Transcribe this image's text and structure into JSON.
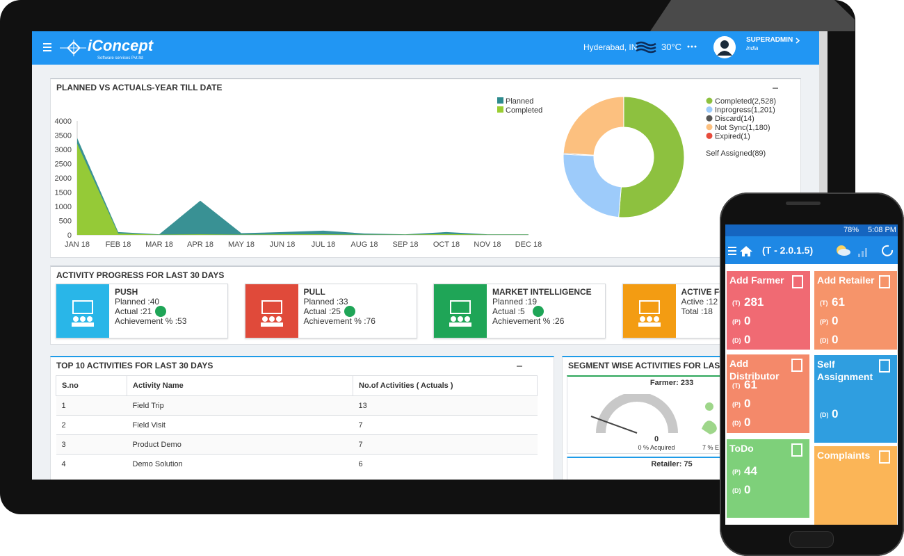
{
  "header": {
    "logo": "iConcept",
    "logo_sub": "Software services Pvt.ltd",
    "location": "Hyderabad, IN",
    "temperature": "30°C",
    "user": "SUPERADMIN",
    "country": "India"
  },
  "chart_data": [
    {
      "type": "area",
      "title": "PLANNED VS ACTUALS-YEAR TILL DATE",
      "categories": [
        "JAN 18",
        "FEB 18",
        "MAR 18",
        "APR 18",
        "MAY 18",
        "JUN 18",
        "JUL 18",
        "AUG 18",
        "SEP 18",
        "OCT 18",
        "NOV 18",
        "DEC 18"
      ],
      "series": [
        {
          "name": "Planned",
          "color": "#2e8b8e",
          "values": [
            3400,
            100,
            20,
            1200,
            60,
            100,
            150,
            50,
            20,
            100,
            20,
            20
          ]
        },
        {
          "name": "Completed",
          "color": "#9acd32",
          "values": [
            3200,
            50,
            10,
            20,
            10,
            20,
            20,
            10,
            10,
            30,
            10,
            10
          ]
        }
      ],
      "ylim": [
        0,
        4000
      ],
      "yticks": [
        0,
        500,
        1000,
        1500,
        2000,
        2500,
        3000,
        3500,
        4000
      ],
      "grid": false
    },
    {
      "type": "pie",
      "donut": true,
      "categories": [
        "Completed(2,528)",
        "Inprogress(1,201)",
        "Discard(14)",
        "Not Sync(1,180)",
        "Expired(1)"
      ],
      "values": [
        2528,
        1201,
        14,
        1180,
        1
      ],
      "colors": [
        "#8dc13f",
        "#9dcbfa",
        "#555555",
        "#fcc07f",
        "#e74c3c"
      ],
      "annotation": "Self Assigned(89)"
    }
  ],
  "activity_progress": {
    "title": "ACTIVITY PROGRESS FOR LAST 30 DAYS",
    "cards": [
      {
        "title": "PUSH",
        "lines": [
          "Planned :40",
          "Actual :21",
          "Achievement % :53"
        ]
      },
      {
        "title": "PULL",
        "lines": [
          "Planned :33",
          "Actual :25",
          "Achievement % :76"
        ]
      },
      {
        "title": "MARKET INTELLIGENCE",
        "lines": [
          "Planned :19",
          "Actual :5",
          "Achievement % :26"
        ]
      },
      {
        "title": "ACTIVE FO",
        "lines": [
          "Active :12",
          "Total :18"
        ]
      }
    ]
  },
  "top_activities": {
    "title": "TOP 10 ACTIVITIES FOR LAST 30 DAYS",
    "columns": [
      "S.no",
      "Activity Name",
      "No.of Activities ( Actuals )"
    ],
    "rows": [
      [
        "1",
        "Field Trip",
        "13"
      ],
      [
        "2",
        "Field Visit",
        "7"
      ],
      [
        "3",
        "Product Demo",
        "7"
      ],
      [
        "4",
        "Demo Solution",
        "6"
      ]
    ]
  },
  "segment": {
    "title": "SEGMENT WISE ACTIVITIES FOR LAST",
    "farmer": "Farmer: 233",
    "farmer_value": "0",
    "acquired": "0 % Acquired",
    "other": "7 % E",
    "retailer": "Retailer: 75"
  },
  "phone": {
    "battery": "78%",
    "time": "5:08 PM",
    "app_title": "(T - 2.0.1.5)",
    "tiles": [
      {
        "title": "Add Farmer",
        "rows": [
          {
            "label": "(T)",
            "value": "281"
          },
          {
            "label": "(P)",
            "value": "0"
          },
          {
            "label": "(D)",
            "value": "0"
          }
        ]
      },
      {
        "title": "Add Retailer",
        "rows": [
          {
            "label": "(T)",
            "value": "61"
          },
          {
            "label": "(P)",
            "value": "0"
          },
          {
            "label": "(D)",
            "value": "0"
          }
        ]
      },
      {
        "title": "Add Distributor",
        "rows": [
          {
            "label": "(T)",
            "value": "61"
          },
          {
            "label": "(P)",
            "value": "0"
          },
          {
            "label": "(D)",
            "value": "0"
          }
        ]
      },
      {
        "title": "Self Assignment",
        "rows": [
          {
            "label": "(D)",
            "value": "0"
          }
        ]
      },
      {
        "title": "ToDo",
        "rows": [
          {
            "label": "(P)",
            "value": "44"
          },
          {
            "label": "(D)",
            "value": "0"
          }
        ]
      },
      {
        "title": "Complaints",
        "rows": []
      }
    ]
  }
}
